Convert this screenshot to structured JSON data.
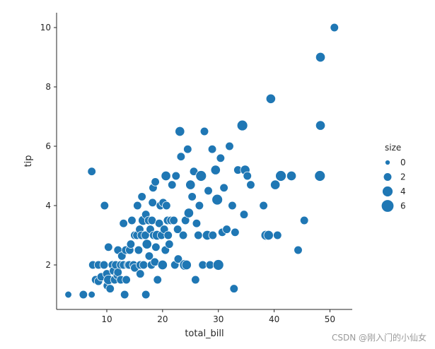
{
  "chart_data": {
    "type": "scatter",
    "xlabel": "total_bill",
    "ylabel": "tip",
    "xlim": [
      1,
      54
    ],
    "ylim": [
      0.5,
      10.5
    ],
    "x_ticks": [
      10,
      20,
      30,
      40,
      50
    ],
    "y_ticks": [
      2,
      4,
      6,
      8,
      10
    ],
    "grid": false,
    "legend_position": "right",
    "legend": {
      "title": "size",
      "entries": [
        0,
        2,
        4,
        6
      ]
    },
    "marker_color": "#1f77b4",
    "points": [
      [
        3.1,
        1.0,
        1
      ],
      [
        5.8,
        1.0,
        2
      ],
      [
        7.3,
        1.0,
        1
      ],
      [
        7.3,
        5.15,
        2
      ],
      [
        7.5,
        2.0,
        2
      ],
      [
        8.0,
        1.5,
        2
      ],
      [
        8.5,
        1.45,
        2
      ],
      [
        8.5,
        2.0,
        2
      ],
      [
        9.0,
        1.6,
        2
      ],
      [
        9.5,
        2.0,
        2
      ],
      [
        9.6,
        4.0,
        2
      ],
      [
        10.0,
        1.7,
        2
      ],
      [
        10.1,
        1.3,
        2
      ],
      [
        10.3,
        2.6,
        2
      ],
      [
        10.3,
        1.5,
        3
      ],
      [
        10.6,
        1.2,
        2
      ],
      [
        11.0,
        2.0,
        2
      ],
      [
        11.2,
        1.8,
        2
      ],
      [
        11.4,
        1.5,
        2
      ],
      [
        11.6,
        2.0,
        2
      ],
      [
        11.9,
        1.65,
        2
      ],
      [
        12.0,
        2.5,
        2
      ],
      [
        12.0,
        1.75,
        2
      ],
      [
        12.5,
        2.0,
        2
      ],
      [
        12.5,
        1.5,
        2
      ],
      [
        12.7,
        2.3,
        2
      ],
      [
        13.0,
        2.0,
        2
      ],
      [
        13.0,
        3.4,
        2
      ],
      [
        13.2,
        1.0,
        2
      ],
      [
        13.4,
        2.5,
        2
      ],
      [
        13.5,
        1.5,
        2
      ],
      [
        13.8,
        2.0,
        2
      ],
      [
        14.0,
        2.0,
        2
      ],
      [
        14.1,
        2.5,
        2
      ],
      [
        14.3,
        2.7,
        2
      ],
      [
        14.5,
        3.5,
        2
      ],
      [
        14.8,
        2.0,
        2
      ],
      [
        15.0,
        1.9,
        2
      ],
      [
        15.0,
        3.0,
        2
      ],
      [
        15.4,
        3.0,
        2
      ],
      [
        15.5,
        4.0,
        2
      ],
      [
        15.7,
        2.5,
        2
      ],
      [
        15.9,
        3.2,
        2
      ],
      [
        16.0,
        1.7,
        2
      ],
      [
        16.0,
        2.0,
        2
      ],
      [
        16.2,
        3.0,
        2
      ],
      [
        16.3,
        4.3,
        2
      ],
      [
        16.5,
        3.5,
        3
      ],
      [
        16.6,
        2.0,
        2
      ],
      [
        16.9,
        3.0,
        2
      ],
      [
        17.0,
        3.7,
        2
      ],
      [
        17.0,
        1.0,
        2
      ],
      [
        17.2,
        2.7,
        3
      ],
      [
        17.5,
        3.5,
        2
      ],
      [
        17.6,
        2.3,
        2
      ],
      [
        17.8,
        3.2,
        2
      ],
      [
        18.0,
        2.0,
        2
      ],
      [
        18.1,
        3.5,
        2
      ],
      [
        18.2,
        4.1,
        2
      ],
      [
        18.3,
        4.6,
        2
      ],
      [
        18.4,
        3.0,
        2
      ],
      [
        18.6,
        2.1,
        2
      ],
      [
        18.7,
        4.8,
        2
      ],
      [
        18.8,
        2.6,
        2
      ],
      [
        19.0,
        3.0,
        3
      ],
      [
        19.1,
        1.5,
        2
      ],
      [
        19.4,
        3.4,
        2
      ],
      [
        19.6,
        4.0,
        2
      ],
      [
        19.8,
        3.0,
        2
      ],
      [
        20.0,
        2.0,
        3
      ],
      [
        20.1,
        4.1,
        2
      ],
      [
        20.3,
        3.2,
        2
      ],
      [
        20.5,
        2.5,
        2
      ],
      [
        20.6,
        5.0,
        3
      ],
      [
        20.7,
        4.0,
        2
      ],
      [
        20.9,
        3.5,
        2
      ],
      [
        21.0,
        3.0,
        2
      ],
      [
        21.2,
        2.7,
        2
      ],
      [
        21.5,
        3.5,
        2
      ],
      [
        21.7,
        4.7,
        2
      ],
      [
        22.0,
        3.5,
        2
      ],
      [
        22.2,
        2.0,
        2
      ],
      [
        22.4,
        5.0,
        2
      ],
      [
        22.7,
        3.2,
        2
      ],
      [
        22.8,
        2.2,
        2
      ],
      [
        23.1,
        6.5,
        3
      ],
      [
        23.3,
        5.65,
        2
      ],
      [
        23.7,
        3.0,
        2
      ],
      [
        24.0,
        2.0,
        4
      ],
      [
        24.1,
        3.5,
        2
      ],
      [
        24.3,
        2.0,
        3
      ],
      [
        24.5,
        5.9,
        2
      ],
      [
        24.7,
        3.75,
        3
      ],
      [
        25.0,
        4.7,
        3
      ],
      [
        25.3,
        4.3,
        2
      ],
      [
        25.6,
        5.15,
        2
      ],
      [
        25.9,
        1.5,
        2
      ],
      [
        26.1,
        3.4,
        2
      ],
      [
        26.4,
        3.0,
        2
      ],
      [
        26.6,
        4.0,
        2
      ],
      [
        26.9,
        5.0,
        4
      ],
      [
        27.2,
        2.0,
        2
      ],
      [
        27.5,
        6.5,
        2
      ],
      [
        28.0,
        3.0,
        3
      ],
      [
        28.2,
        4.5,
        2
      ],
      [
        28.5,
        2.0,
        2
      ],
      [
        28.9,
        5.9,
        2
      ],
      [
        29.0,
        3.0,
        2
      ],
      [
        29.5,
        5.2,
        3
      ],
      [
        29.8,
        4.2,
        4
      ],
      [
        30.0,
        2.0,
        4
      ],
      [
        30.4,
        5.6,
        2
      ],
      [
        30.7,
        3.1,
        2
      ],
      [
        31.0,
        4.6,
        2
      ],
      [
        31.5,
        3.2,
        2
      ],
      [
        32.0,
        6.0,
        2
      ],
      [
        32.5,
        4.0,
        2
      ],
      [
        32.8,
        1.2,
        2
      ],
      [
        33.0,
        3.1,
        2
      ],
      [
        33.5,
        5.2,
        2
      ],
      [
        34.3,
        6.7,
        4
      ],
      [
        34.6,
        3.7,
        2
      ],
      [
        34.8,
        5.2,
        3
      ],
      [
        35.2,
        5.0,
        2
      ],
      [
        35.8,
        4.7,
        2
      ],
      [
        38.1,
        4.0,
        2
      ],
      [
        38.5,
        3.0,
        3
      ],
      [
        39.0,
        3.0,
        3
      ],
      [
        39.4,
        7.6,
        3
      ],
      [
        40.2,
        4.7,
        3
      ],
      [
        40.6,
        3.0,
        2
      ],
      [
        41.2,
        5.0,
        4
      ],
      [
        43.1,
        5.0,
        3
      ],
      [
        44.3,
        2.5,
        2
      ],
      [
        45.4,
        3.5,
        2
      ],
      [
        48.2,
        5.0,
        4
      ],
      [
        48.3,
        6.7,
        3
      ],
      [
        48.3,
        9.0,
        3
      ],
      [
        50.8,
        10.0,
        2
      ]
    ]
  },
  "watermark": "CSDN @刚入门的小仙女"
}
